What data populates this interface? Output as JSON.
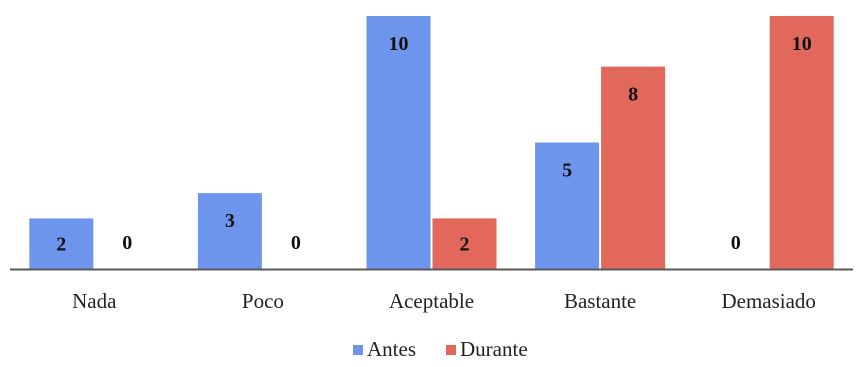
{
  "chart_data": {
    "type": "bar",
    "title": "",
    "xlabel": "",
    "ylabel": "",
    "categories": [
      "Nada",
      "Poco",
      "Aceptable",
      "Bastante",
      "Demasiado"
    ],
    "series": [
      {
        "name": "Antes",
        "values": [
          2,
          3,
          10,
          5,
          0
        ],
        "color": "#6E95EC"
      },
      {
        "name": "Durante",
        "values": [
          0,
          0,
          2,
          8,
          10
        ],
        "color": "#E2685B"
      }
    ],
    "ylim": [
      0,
      10
    ],
    "grid": false,
    "legend_position": "bottom-center",
    "axis_color": "#5a5a5a"
  }
}
